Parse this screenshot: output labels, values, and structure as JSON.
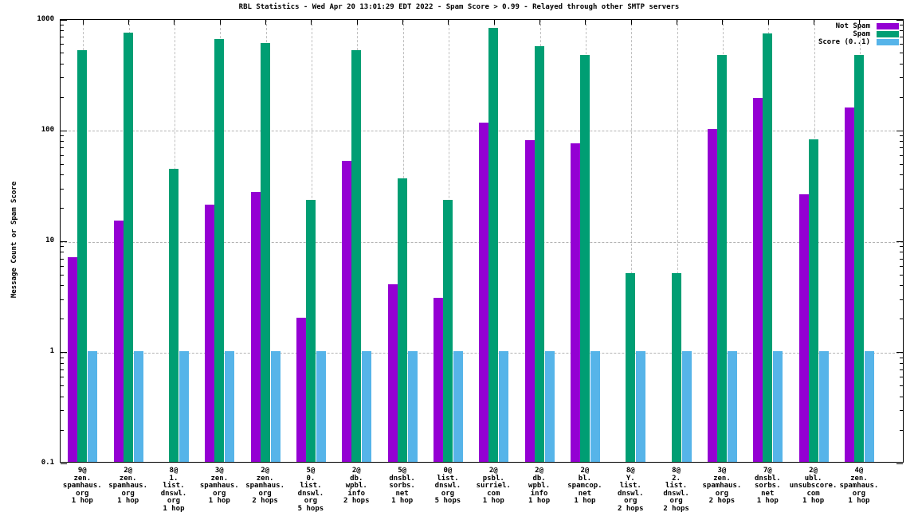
{
  "chart_data": {
    "type": "bar",
    "title": "RBL Statistics - Wed Apr 20 13:01:29 EDT 2022 - Spam Score > 0.99 - Relayed through other SMTP servers",
    "xlabel": "",
    "ylabel": "Message Count or Spam Score",
    "y_scale": "log10",
    "ylim": [
      0.1,
      1000
    ],
    "y_major_ticks": [
      0.1,
      1,
      10,
      100,
      1000
    ],
    "y_tick_labels": [
      "0.1",
      "1",
      "10",
      "100",
      "1000"
    ],
    "grid": true,
    "legend_position": "top-right-inside",
    "background_color": "#ffffff",
    "categories": [
      [
        "9@",
        "zen.",
        "spamhaus.",
        "org",
        "1 hop"
      ],
      [
        "2@",
        "zen.",
        "spamhaus.",
        "org",
        "1 hop"
      ],
      [
        "8@",
        "1.",
        "list.",
        "dnswl.",
        "org",
        "1 hop"
      ],
      [
        "3@",
        "zen.",
        "spamhaus.",
        "org",
        "1 hop"
      ],
      [
        "2@",
        "zen.",
        "spamhaus.",
        "org",
        "2 hops"
      ],
      [
        "5@",
        "0.",
        "list.",
        "dnswl.",
        "org",
        "5 hops"
      ],
      [
        "2@",
        "db.",
        "wpbl.",
        "info",
        "2 hops"
      ],
      [
        "5@",
        "dnsbl.",
        "sorbs.",
        "net",
        "1 hop"
      ],
      [
        "0@",
        "list.",
        "dnswl.",
        "org",
        "5 hops"
      ],
      [
        "2@",
        "psbl.",
        "surriel.",
        "com",
        "1 hop"
      ],
      [
        "2@",
        "db.",
        "wpbl.",
        "info",
        "1 hop"
      ],
      [
        "2@",
        "bl.",
        "spamcop.",
        "net",
        "1 hop"
      ],
      [
        "8@",
        "Y.",
        "list.",
        "dnswl.",
        "org",
        "2 hops"
      ],
      [
        "8@",
        "2.",
        "list.",
        "dnswl.",
        "org",
        "2 hops"
      ],
      [
        "3@",
        "zen.",
        "spamhaus.",
        "org",
        "2 hops"
      ],
      [
        "7@",
        "dnsbl.",
        "sorbs.",
        "net",
        "1 hop"
      ],
      [
        "2@",
        "ubl.",
        "unsubscore.",
        "com",
        "1 hop"
      ],
      [
        "4@",
        "zen.",
        "spamhaus.",
        "org",
        "1 hop"
      ]
    ],
    "series": [
      {
        "name": "Not Spam",
        "color": "#9400d3",
        "values": [
          7,
          15,
          null,
          21,
          27,
          2,
          52,
          4,
          3,
          115,
          80,
          75,
          null,
          null,
          100,
          190,
          26,
          158
        ]
      },
      {
        "name": "Spam",
        "color": "#009e73",
        "values": [
          520,
          745,
          44,
          650,
          600,
          23,
          520,
          36,
          23,
          820,
          560,
          470,
          5,
          5,
          465,
          735,
          81,
          470
        ]
      },
      {
        "name": "Score (0..1)",
        "color": "#56b4e9",
        "values": [
          1,
          1,
          1,
          1,
          1,
          1,
          1,
          1,
          1,
          1,
          1,
          1,
          1,
          1,
          1,
          1,
          1,
          1
        ]
      }
    ]
  }
}
